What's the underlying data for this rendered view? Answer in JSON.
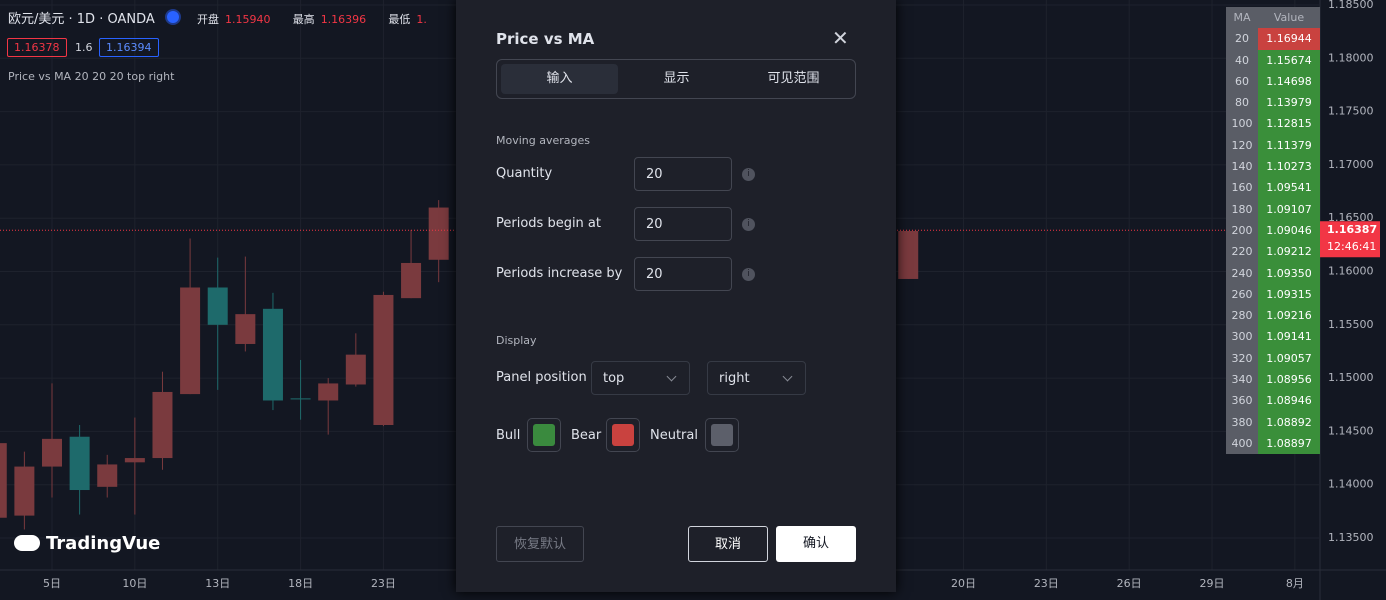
{
  "header": {
    "symbol": "欧元/美元 · 1D · OANDA",
    "open_label": "开盘",
    "open": "1.15940",
    "high_label": "最高",
    "high": "1.16396",
    "low_label": "最低",
    "low": "1.",
    "bid": "1.16378",
    "spread": "1.6",
    "ask": "1.16394",
    "indicator": "Price vs MA 20 20 20 top right"
  },
  "logo": "TradingVue",
  "chart": {
    "ylim": [
      1.135,
      1.185
    ],
    "yticks": [
      {
        "value": 1.185,
        "label": "1.18500"
      },
      {
        "value": 1.18,
        "label": "1.18000"
      },
      {
        "value": 1.175,
        "label": "1.17500"
      },
      {
        "value": 1.17,
        "label": "1.17000"
      },
      {
        "value": 1.165,
        "label": "1.16500"
      },
      {
        "value": 1.16,
        "label": "1.16000"
      },
      {
        "value": 1.155,
        "label": "1.15500"
      },
      {
        "value": 1.15,
        "label": "1.15000"
      },
      {
        "value": 1.145,
        "label": "1.14500"
      },
      {
        "value": 1.14,
        "label": "1.14000"
      },
      {
        "value": 1.135,
        "label": "1.13500"
      }
    ],
    "xlabels": [
      "5日",
      "10日",
      "13日",
      "18日",
      "23日",
      "20日",
      "23日",
      "26日",
      "29日",
      "8月"
    ],
    "up_color": "#7a3a3e",
    "down_color": "#1e6a6b",
    "candles": [
      {
        "open": 1.1369,
        "high": 1.1445,
        "low": 1.1365,
        "close": 1.1439
      },
      {
        "open": 1.1371,
        "high": 1.1431,
        "low": 1.1358,
        "close": 1.1417
      },
      {
        "open": 1.1417,
        "high": 1.1495,
        "low": 1.1388,
        "close": 1.1443
      },
      {
        "open": 1.1445,
        "high": 1.1456,
        "low": 1.1372,
        "close": 1.1395
      },
      {
        "open": 1.1398,
        "high": 1.1428,
        "low": 1.1388,
        "close": 1.1419
      },
      {
        "open": 1.1421,
        "high": 1.1463,
        "low": 1.1372,
        "close": 1.1425
      },
      {
        "open": 1.1425,
        "high": 1.1506,
        "low": 1.1414,
        "close": 1.1487
      },
      {
        "open": 1.1485,
        "high": 1.1631,
        "low": 1.1485,
        "close": 1.1585
      },
      {
        "open": 1.1585,
        "high": 1.1613,
        "low": 1.1489,
        "close": 1.155
      },
      {
        "open": 1.1532,
        "high": 1.1614,
        "low": 1.1525,
        "close": 1.156
      },
      {
        "open": 1.1565,
        "high": 1.158,
        "low": 1.147,
        "close": 1.1479
      },
      {
        "open": 1.1481,
        "high": 1.1517,
        "low": 1.1461,
        "close": 1.148
      },
      {
        "open": 1.1479,
        "high": 1.15,
        "low": 1.1447,
        "close": 1.1495
      },
      {
        "open": 1.1494,
        "high": 1.1542,
        "low": 1.1492,
        "close": 1.1522
      },
      {
        "open": 1.1456,
        "high": 1.1581,
        "low": 1.1455,
        "close": 1.1578
      },
      {
        "open": 1.1575,
        "high": 1.1639,
        "low": 1.1575,
        "close": 1.1608
      },
      {
        "open": 1.1611,
        "high": 1.1667,
        "low": 1.159,
        "close": 1.166
      },
      null,
      null,
      null,
      null,
      null,
      null,
      null,
      null,
      null,
      null,
      null,
      null,
      null,
      null,
      null,
      null,
      {
        "open": 1.1593,
        "high": 1.1638,
        "low": 1.1593,
        "close": 1.1638
      }
    ],
    "last_price": {
      "value": 1.16387,
      "label": "1.16387",
      "time": "12:46:41"
    }
  },
  "ma_table": {
    "headers": [
      "MA",
      "Value"
    ],
    "rows": [
      [
        "20",
        "1.16944"
      ],
      [
        "40",
        "1.15674"
      ],
      [
        "60",
        "1.14698"
      ],
      [
        "80",
        "1.13979"
      ],
      [
        "100",
        "1.12815"
      ],
      [
        "120",
        "1.11379"
      ],
      [
        "140",
        "1.10273"
      ],
      [
        "160",
        "1.09541"
      ],
      [
        "180",
        "1.09107"
      ],
      [
        "200",
        "1.09046"
      ],
      [
        "220",
        "1.09212"
      ],
      [
        "240",
        "1.09350"
      ],
      [
        "260",
        "1.09315"
      ],
      [
        "280",
        "1.09216"
      ],
      [
        "300",
        "1.09141"
      ],
      [
        "320",
        "1.09057"
      ],
      [
        "340",
        "1.08956"
      ],
      [
        "360",
        "1.08946"
      ],
      [
        "380",
        "1.08892"
      ],
      [
        "400",
        "1.08897"
      ]
    ]
  },
  "dialog": {
    "title": "Price vs MA",
    "tabs": [
      "输入",
      "显示",
      "可见范围"
    ],
    "section1": "Moving averages",
    "fields": [
      {
        "label": "Quantity",
        "value": 20
      },
      {
        "label": "Periods begin at",
        "value": 20
      },
      {
        "label": "Periods increase by",
        "value": 20
      }
    ],
    "section2": "Display",
    "panel_label": "Panel position",
    "panel_v": "top",
    "panel_h": "right",
    "colors": [
      {
        "label": "Bull",
        "color": "#3a8a3e"
      },
      {
        "label": "Bear",
        "color": "#c9423f"
      },
      {
        "label": "Neutral",
        "color": "#5c5f6a"
      }
    ],
    "reset": "恢复默认",
    "cancel": "取消",
    "ok": "确认"
  }
}
